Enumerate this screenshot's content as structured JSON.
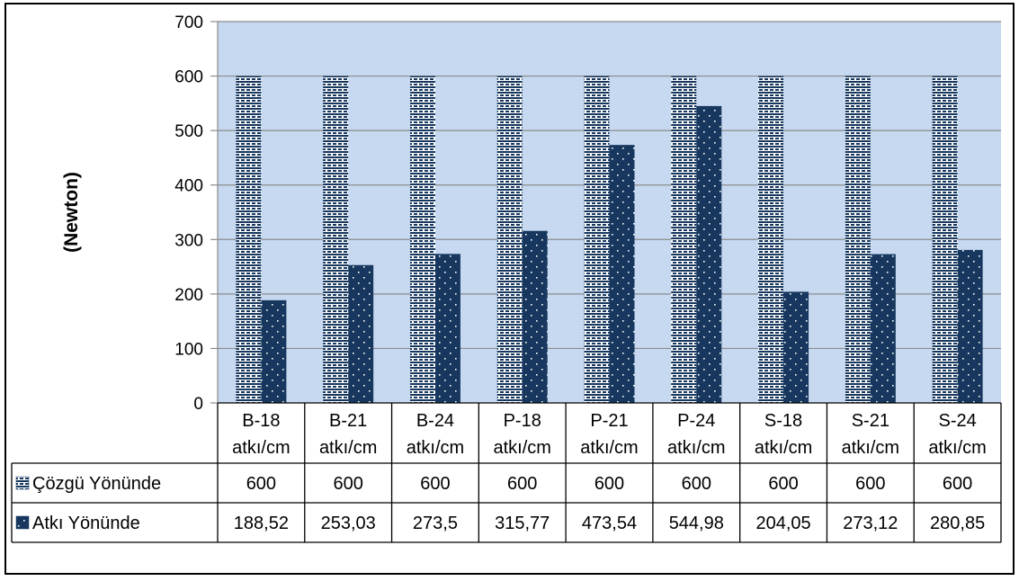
{
  "chart_data": {
    "type": "bar",
    "title": "",
    "xlabel": "",
    "ylabel": "(Newton)",
    "ylim": [
      0,
      700
    ],
    "yticks": [
      0,
      100,
      200,
      300,
      400,
      500,
      600,
      700
    ],
    "grid": true,
    "legend": "data-table",
    "categories": [
      [
        "B-18",
        "atkı/cm"
      ],
      [
        "B-21",
        "atkı/cm"
      ],
      [
        "B-24",
        "atkı/cm"
      ],
      [
        "P-18",
        "atkı/cm"
      ],
      [
        "P-21",
        "atkı/cm"
      ],
      [
        "P-24",
        "atkı/cm"
      ],
      [
        "S-18",
        "atkı/cm"
      ],
      [
        "S-21",
        "atkı/cm"
      ],
      [
        "S-24",
        "atkı/cm"
      ]
    ],
    "series": [
      {
        "name": "Çözgü Yönünde",
        "values": [
          600,
          600,
          600,
          600,
          600,
          600,
          600,
          600,
          600
        ],
        "labels": [
          "600",
          "600",
          "600",
          "600",
          "600",
          "600",
          "600",
          "600",
          "600"
        ]
      },
      {
        "name": "Atkı Yönünde",
        "values": [
          188.52,
          253.03,
          273.5,
          315.77,
          473.54,
          544.98,
          204.05,
          273.12,
          280.85
        ],
        "labels": [
          "188,52",
          "253,03",
          "273,5",
          "315,77",
          "473,54",
          "544,98",
          "204,05",
          "273,12",
          "280,85"
        ]
      }
    ]
  },
  "colors": {
    "plot_bg": "#c6d9f1",
    "bar_color": "#17375e",
    "grid": "#8c8c8c",
    "border": "#000000"
  }
}
